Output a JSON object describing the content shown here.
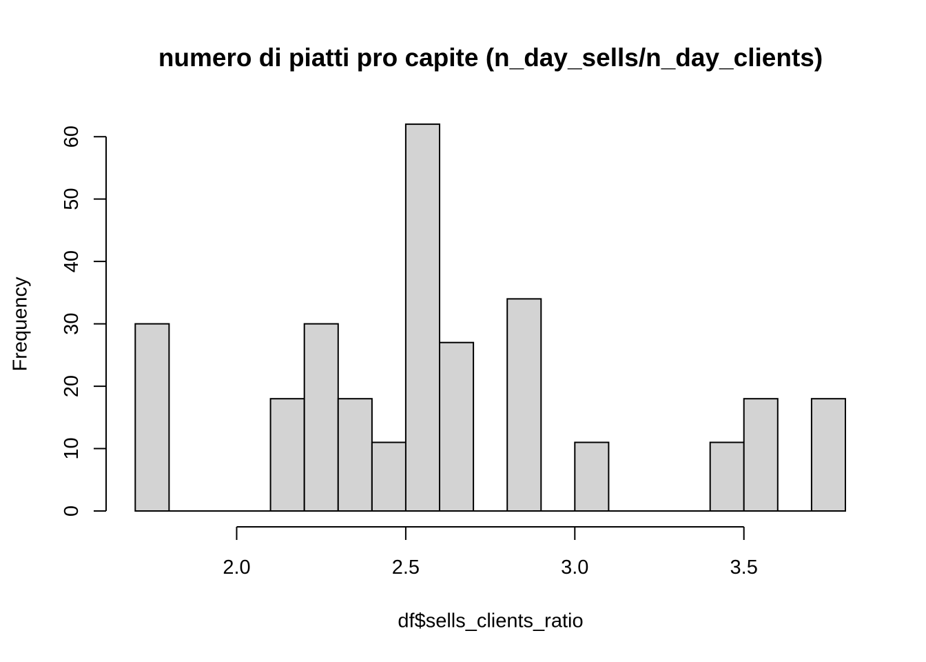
{
  "chart_data": {
    "type": "bar",
    "subtype": "histogram",
    "title": "numero di piatti pro capite (n_day_sells/n_day_clients)",
    "xlabel": "df$sells_clients_ratio",
    "ylabel": "Frequency",
    "bin_start": 1.7,
    "bin_width": 0.1,
    "bin_edges": [
      1.7,
      1.8,
      1.9,
      2.0,
      2.1,
      2.2,
      2.3,
      2.4,
      2.5,
      2.6,
      2.7,
      2.8,
      2.9,
      3.0,
      3.1,
      3.2,
      3.3,
      3.4,
      3.5,
      3.6,
      3.7,
      3.8
    ],
    "counts": [
      30,
      0,
      0,
      0,
      18,
      30,
      18,
      11,
      62,
      27,
      0,
      34,
      0,
      11,
      0,
      0,
      0,
      11,
      18,
      0,
      18
    ],
    "x_ticks": {
      "values": [
        2.0,
        2.5,
        3.0,
        3.5
      ],
      "labels": [
        "2.0",
        "2.5",
        "3.0",
        "3.5"
      ]
    },
    "y_ticks": {
      "values": [
        0,
        10,
        20,
        30,
        40,
        50,
        60
      ],
      "labels": [
        "0",
        "10",
        "20",
        "30",
        "40",
        "50",
        "60"
      ]
    },
    "xlim": [
      1.7,
      3.8
    ],
    "ylim": [
      0,
      62
    ],
    "grid": false,
    "legend": null,
    "bar_fill": "#d3d3d3",
    "bar_stroke": "#000000",
    "axis_color": "#000000",
    "background": "#ffffff"
  }
}
